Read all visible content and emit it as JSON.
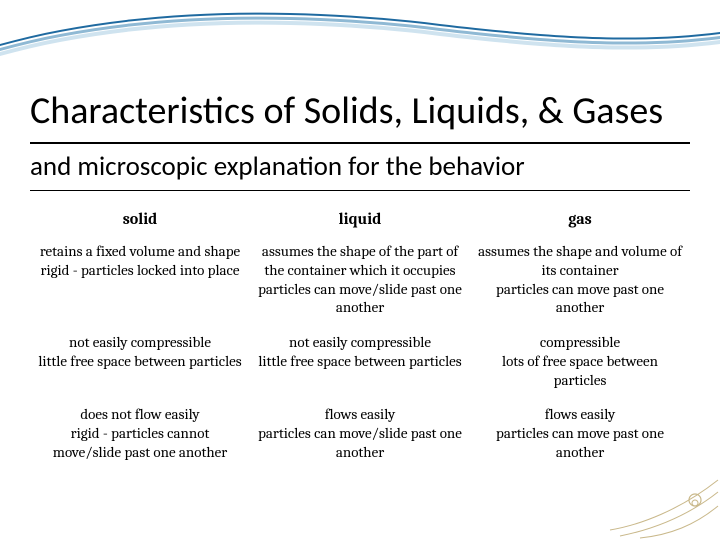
{
  "title": "Characteristics of Solids, Liquids, & Gases",
  "subtitle": "and microscopic explanation for the behavior",
  "colors": {
    "swoosh_light": "#cfe3ef",
    "swoosh_mid": "#8fb9d4",
    "swoosh_dark": "#1f6aa0",
    "accent_beige": "#c9b88a",
    "background": "#ffffff",
    "text": "#000000"
  },
  "table": {
    "headers": [
      "solid",
      "liquid",
      "gas"
    ],
    "rows": [
      [
        "retains a fixed volume and shape\nrigid - particles locked into place",
        "assumes the shape of the part of the container which it occupies\nparticles can move/slide past one another",
        "assumes the shape and volume of its container\nparticles can move past one another"
      ],
      [
        "not easily compressible\nlittle free space between particles",
        "not easily compressible\nlittle free space between particles",
        "compressible\nlots of free space between particles"
      ],
      [
        "does not flow easily\nrigid - particles cannot move/slide past one another",
        "flows easily\nparticles can move/slide past one another",
        "flows easily\nparticles can move past one another"
      ]
    ],
    "header_fontsize": 16,
    "cell_fontsize": 15,
    "font_family": "Cambria"
  },
  "title_fontsize": 38,
  "subtitle_fontsize": 27
}
